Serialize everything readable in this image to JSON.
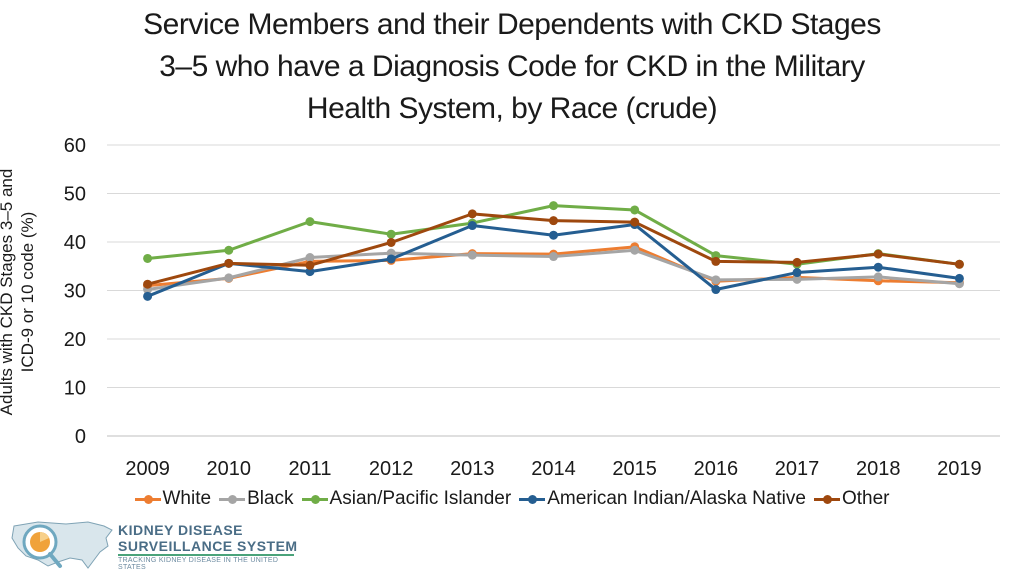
{
  "title_lines": [
    "Service Members and their Dependents with CKD Stages",
    "3–5 who have a Diagnosis Code for CKD in the Military",
    "Health System, by Race (crude)"
  ],
  "ylabel_lines": [
    "Adults with CKD Stages 3–5 and",
    "ICD-9 or 10 code (%)"
  ],
  "logo": {
    "line1": "KIDNEY DISEASE",
    "line2": "SURVEILLANCE SYSTEM",
    "line3": "TRACKING KIDNEY DISEASE IN THE UNITED STATES"
  },
  "chart_data": {
    "type": "line",
    "title": "Service Members and their Dependents with CKD Stages 3–5 who have a Diagnosis Code for CKD in the Military Health System, by Race (crude)",
    "xlabel": "",
    "ylabel": "Adults with CKD Stages 3–5 and ICD-9 or 10 code (%)",
    "ylim": [
      0,
      60
    ],
    "yticks": [
      0,
      10,
      20,
      30,
      40,
      50,
      60
    ],
    "grid": true,
    "legend_position": "bottom",
    "categories": [
      "2009",
      "2010",
      "2011",
      "2012",
      "2013",
      "2014",
      "2015",
      "2016",
      "2017",
      "2018",
      "2019"
    ],
    "series": [
      {
        "name": "White",
        "color": "#ed7d31",
        "values": [
          31.0,
          32.5,
          36.0,
          36.2,
          37.6,
          37.5,
          39.0,
          31.9,
          32.7,
          32.0,
          31.6
        ]
      },
      {
        "name": "Black",
        "color": "#a5a5a5",
        "values": [
          30.2,
          32.6,
          36.8,
          37.7,
          37.3,
          37.0,
          38.3,
          32.2,
          32.3,
          32.8,
          31.4
        ]
      },
      {
        "name": "Asian/Pacific Islander",
        "color": "#70ad47",
        "values": [
          36.6,
          38.3,
          44.2,
          41.6,
          43.9,
          47.5,
          46.6,
          37.2,
          35.4,
          37.6,
          35.4
        ]
      },
      {
        "name": "American Indian/Alaska Native",
        "color": "#255e91",
        "values": [
          28.8,
          35.6,
          33.9,
          36.5,
          43.4,
          41.4,
          43.6,
          30.2,
          33.7,
          34.8,
          32.5
        ]
      },
      {
        "name": "Other",
        "color": "#9e480e",
        "values": [
          31.3,
          35.6,
          35.2,
          39.9,
          45.8,
          44.4,
          44.1,
          36.0,
          35.8,
          37.5,
          35.4
        ]
      }
    ]
  }
}
